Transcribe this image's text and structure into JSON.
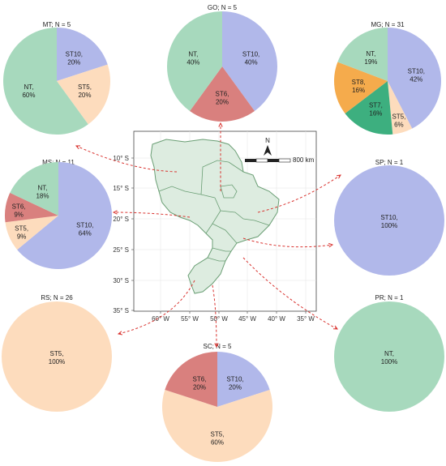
{
  "colors": {
    "ST10": "#b1b8ea",
    "ST5": "#fddcbd",
    "ST6": "#d9807e",
    "NT": "#a7d9bd",
    "ST7": "#3daf7f",
    "ST8": "#f5ab4c",
    "map_fill": "#ddece0",
    "map_stroke": "#6a9e74",
    "arrow": "#d9332f"
  },
  "chart_data": {
    "type": "pie",
    "pies": [
      {
        "title": "MT; N = 5",
        "slices": [
          {
            "category": "ST10",
            "label": "ST10,",
            "pct": "20%",
            "value": 20
          },
          {
            "category": "ST5",
            "label": "ST5,",
            "pct": "20%",
            "value": 20
          },
          {
            "category": "NT",
            "label": "NT,",
            "pct": "60%",
            "value": 60
          }
        ]
      },
      {
        "title": "GO; N = 5",
        "slices": [
          {
            "category": "ST10",
            "label": "ST10,",
            "pct": "40%",
            "value": 40
          },
          {
            "category": "ST6",
            "label": "ST6,",
            "pct": "20%",
            "value": 20
          },
          {
            "category": "NT",
            "label": "NT,",
            "pct": "40%",
            "value": 40
          }
        ]
      },
      {
        "title": "MG; N = 31",
        "slices": [
          {
            "category": "ST10",
            "label": "ST10,",
            "pct": "42%",
            "value": 42
          },
          {
            "category": "ST5",
            "label": "ST5,",
            "pct": "6%",
            "value": 6
          },
          {
            "category": "ST7",
            "label": "ST7,",
            "pct": "16%",
            "value": 16
          },
          {
            "category": "ST8",
            "label": "ST8,",
            "pct": "16%",
            "value": 16
          },
          {
            "category": "NT",
            "label": "NT,",
            "pct": "19%",
            "value": 19
          }
        ]
      },
      {
        "title": "MS; N = 11",
        "slices": [
          {
            "category": "ST10",
            "label": "ST10,",
            "pct": "64%",
            "value": 64
          },
          {
            "category": "ST5",
            "label": "ST5,",
            "pct": "9%",
            "value": 9
          },
          {
            "category": "ST6",
            "label": "ST6,",
            "pct": "9%",
            "value": 9
          },
          {
            "category": "NT",
            "label": "NT,",
            "pct": "18%",
            "value": 18
          }
        ]
      },
      {
        "title": "SP; N = 1",
        "slices": [
          {
            "category": "ST10",
            "label": "ST10,",
            "pct": "100%",
            "value": 100
          }
        ]
      },
      {
        "title": "RS; N = 26",
        "slices": [
          {
            "category": "ST5",
            "label": "ST5,",
            "pct": "100%",
            "value": 100
          }
        ]
      },
      {
        "title": "PR; N = 1",
        "slices": [
          {
            "category": "NT",
            "label": "NT,",
            "pct": "100%",
            "value": 100
          }
        ]
      },
      {
        "title": "SC; N = 5",
        "slices": [
          {
            "category": "ST10",
            "label": "ST10,",
            "pct": "20%",
            "value": 20
          },
          {
            "category": "ST5",
            "label": "ST5,",
            "pct": "60%",
            "value": 60
          },
          {
            "category": "ST6",
            "label": "ST6,",
            "pct": "20%",
            "value": 20
          }
        ]
      }
    ],
    "map": {
      "lat_ticks": [
        "10° S",
        "15° S",
        "20° S",
        "25° S",
        "30° S",
        "35° S"
      ],
      "lon_ticks": [
        "60° W",
        "55° W",
        "50° W",
        "45° W",
        "40° W",
        "35° W"
      ],
      "north_label": "N",
      "scale_label": "800 km",
      "grid": true
    }
  }
}
